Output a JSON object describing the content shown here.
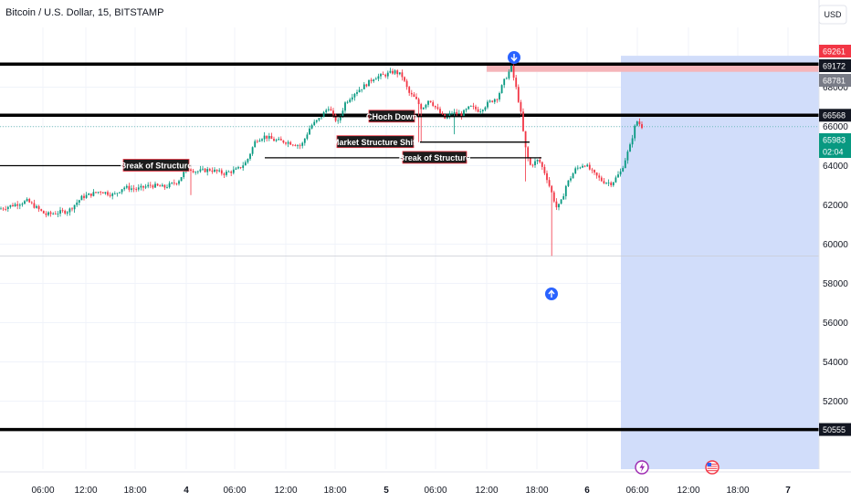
{
  "chart_data": {
    "type": "candlestick",
    "title": "Bitcoin / U.S. Dollar, 15, BITSTAMP",
    "currency": "USD",
    "ylim": [
      49800,
      71500
    ],
    "y_ticks": [
      52000,
      54000,
      56000,
      58000,
      60000,
      62000,
      64000,
      66000,
      68000
    ],
    "x_ticks": [
      {
        "label": "06:00",
        "bold": false
      },
      {
        "label": "12:00",
        "bold": false
      },
      {
        "label": "18:00",
        "bold": false
      },
      {
        "label": "4",
        "bold": true
      },
      {
        "label": "06:00",
        "bold": false
      },
      {
        "label": "12:00",
        "bold": false
      },
      {
        "label": "18:00",
        "bold": false
      },
      {
        "label": "5",
        "bold": true
      },
      {
        "label": "06:00",
        "bold": false
      },
      {
        "label": "12:00",
        "bold": false
      },
      {
        "label": "18:00",
        "bold": false
      },
      {
        "label": "6",
        "bold": true
      },
      {
        "label": "06:00",
        "bold": false
      },
      {
        "label": "12:00",
        "bold": false
      },
      {
        "label": "18:00",
        "bold": false
      },
      {
        "label": "7",
        "bold": true
      }
    ],
    "price_path": [
      [
        0,
        61800
      ],
      [
        30,
        62200
      ],
      [
        50,
        61500
      ],
      [
        75,
        61700
      ],
      [
        90,
        62400
      ],
      [
        110,
        62700
      ],
      [
        125,
        62500
      ],
      [
        135,
        62900
      ],
      [
        150,
        62800
      ],
      [
        165,
        63000
      ],
      [
        180,
        62900
      ],
      [
        195,
        63200
      ],
      [
        205,
        63900
      ],
      [
        215,
        63700
      ],
      [
        230,
        63800
      ],
      [
        245,
        63600
      ],
      [
        260,
        63800
      ],
      [
        270,
        64200
      ],
      [
        280,
        65300
      ],
      [
        290,
        65500
      ],
      [
        300,
        65300
      ],
      [
        315,
        65200
      ],
      [
        330,
        65000
      ],
      [
        340,
        66000
      ],
      [
        350,
        66400
      ],
      [
        360,
        67000
      ],
      [
        365,
        66500
      ],
      [
        370,
        66200
      ],
      [
        378,
        67200
      ],
      [
        388,
        67700
      ],
      [
        400,
        68100
      ],
      [
        410,
        68500
      ],
      [
        420,
        68600
      ],
      [
        432,
        68800
      ],
      [
        440,
        68600
      ],
      [
        448,
        67700
      ],
      [
        455,
        67400
      ],
      [
        462,
        66900
      ],
      [
        470,
        67400
      ],
      [
        478,
        66900
      ],
      [
        487,
        66400
      ],
      [
        495,
        66700
      ],
      [
        505,
        66600
      ],
      [
        515,
        67000
      ],
      [
        525,
        66800
      ],
      [
        535,
        67200
      ],
      [
        545,
        67500
      ],
      [
        552,
        68300
      ],
      [
        560,
        69000
      ],
      [
        565,
        68000
      ],
      [
        570,
        66800
      ],
      [
        575,
        65000
      ],
      [
        580,
        64000
      ],
      [
        590,
        64300
      ],
      [
        598,
        63500
      ],
      [
        605,
        62500
      ],
      [
        610,
        61800
      ],
      [
        615,
        62200
      ],
      [
        620,
        63000
      ],
      [
        630,
        63800
      ],
      [
        640,
        64100
      ],
      [
        650,
        63600
      ],
      [
        660,
        63200
      ],
      [
        670,
        63100
      ],
      [
        680,
        63700
      ],
      [
        690,
        65000
      ],
      [
        697,
        66300
      ],
      [
        705,
        65900
      ]
    ],
    "series": [
      {
        "name": "",
        "values": []
      }
    ],
    "horizontal_levels": [
      {
        "price": 69172,
        "style": "thick"
      },
      {
        "price": 66568,
        "style": "thick"
      },
      {
        "price": 50555,
        "style": "thick"
      }
    ],
    "price_labels": [
      {
        "price": 69261,
        "text": "69261",
        "bg": "#f23645"
      },
      {
        "price": 69172,
        "text": "69172",
        "bg": "#131722"
      },
      {
        "price": 68781,
        "text": "68781",
        "bg": "#787b86"
      },
      {
        "price": 66568,
        "text": "66568",
        "bg": "#131722"
      },
      {
        "price": 65983,
        "text": "65983",
        "bg": "#089981"
      },
      {
        "price": 65700,
        "text": "02:04",
        "bg": "#089981"
      },
      {
        "price": 50555,
        "text": "50555",
        "bg": "#131722"
      }
    ],
    "annotations": [
      {
        "text": "Break of Structure",
        "price": 64000
      },
      {
        "text": "CHoch Down",
        "price": 66500
      },
      {
        "text": "Market Structure Shift",
        "price": 65200
      },
      {
        "text": "Break of Structure",
        "price": 64400
      }
    ],
    "signals": [
      {
        "direction": "down",
        "color": "#2962ff"
      },
      {
        "direction": "up",
        "color": "#2962ff"
      }
    ],
    "event_icons": [
      "lightning-icon",
      "us-flag-icon"
    ],
    "colors": {
      "up": "#089981",
      "down": "#f23645",
      "projection_fill": "#d1ddfa",
      "supply_zone": "#f5b5b9",
      "grid": "#f0f3fa"
    }
  }
}
